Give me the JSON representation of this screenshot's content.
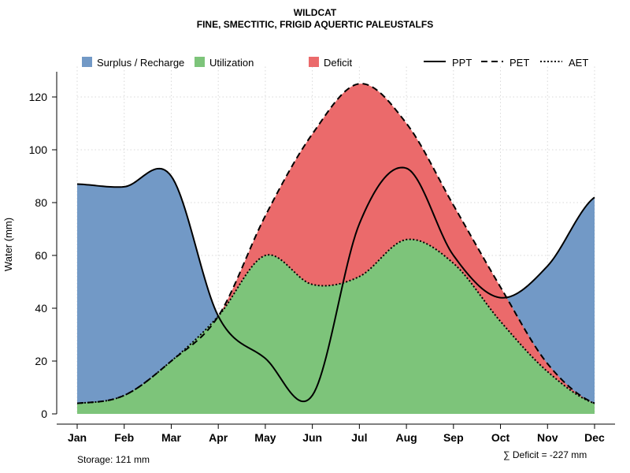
{
  "chart_data": {
    "type": "area",
    "title": "WILDCAT",
    "subtitle": "FINE, SMECTITIC, FRIGID AQUERTIC PALEUSTALFS",
    "ylabel": "Water (mm)",
    "xlabel": "",
    "ylim": [
      0,
      130
    ],
    "yticks": [
      0,
      20,
      40,
      60,
      80,
      100,
      120
    ],
    "grid": true,
    "categories": [
      "Jan",
      "Feb",
      "Mar",
      "Apr",
      "May",
      "Jun",
      "Jul",
      "Aug",
      "Sep",
      "Oct",
      "Nov",
      "Dec"
    ],
    "series": [
      {
        "name": "PPT",
        "style": "solid",
        "values": [
          87,
          86,
          90,
          37,
          21,
          7,
          72,
          93,
          60,
          44,
          56,
          82
        ]
      },
      {
        "name": "PET",
        "style": "dashed",
        "values": [
          4,
          7,
          20,
          37,
          75,
          106,
          125,
          110,
          79,
          48,
          19,
          4
        ]
      },
      {
        "name": "AET",
        "style": "dotted",
        "values": [
          4,
          7,
          20,
          37,
          60,
          49,
          52,
          66,
          57,
          35,
          16,
          4
        ]
      }
    ],
    "legend": {
      "areas": [
        {
          "label": "Surplus / Recharge",
          "color": "#7299c6"
        },
        {
          "label": "Utilization",
          "color": "#7dc47a"
        },
        {
          "label": "Deficit",
          "color": "#eb6a6b"
        }
      ],
      "lines": [
        {
          "label": "PPT",
          "style": "solid"
        },
        {
          "label": "PET",
          "style": "dashed"
        },
        {
          "label": "AET",
          "style": "dotted"
        }
      ],
      "position": "top"
    },
    "annotations": {
      "storage": "Storage: 121 mm",
      "deficit": "∑ Deficit = -227 mm"
    }
  }
}
